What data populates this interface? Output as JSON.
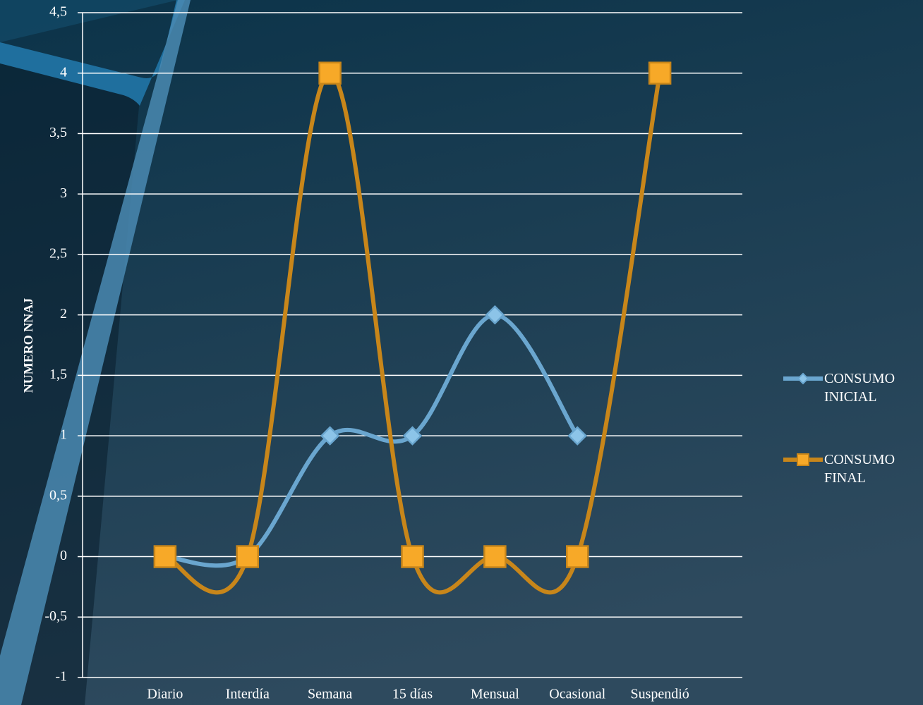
{
  "chart_data": {
    "type": "line",
    "y_axis_label": "NUMERO NNAJ",
    "categories": [
      "Diario",
      "Interdía",
      "Semana",
      "15 días",
      "Mensual",
      "Ocasional",
      "Suspendió"
    ],
    "series": [
      {
        "name": "CONSUMO INICIAL",
        "color": "#6aa6cf",
        "marker_color": "#8cc4e8",
        "marker": "diamond",
        "values": [
          0,
          0,
          1,
          1,
          2,
          1,
          null
        ]
      },
      {
        "name": "CONSUMO FINAL",
        "color": "#c8861a",
        "marker_color": "#f7a928",
        "marker": "square",
        "values": [
          0,
          0,
          4,
          0,
          0,
          0,
          4
        ]
      }
    ],
    "ylim": [
      -1,
      4.5
    ],
    "yticks": [
      -1,
      {
        "value": -0.5,
        "label": "-0,5"
      },
      0,
      {
        "value": 0.5,
        "label": "0,5"
      },
      1,
      {
        "value": 1.5,
        "label": "1,5"
      },
      2,
      {
        "value": 2.5,
        "label": "2,5"
      },
      3,
      {
        "value": 3.5,
        "label": "3,5"
      },
      4,
      {
        "value": 4.5,
        "label": "4,5"
      }
    ],
    "grid": true,
    "smooth": true,
    "legend": "right"
  }
}
